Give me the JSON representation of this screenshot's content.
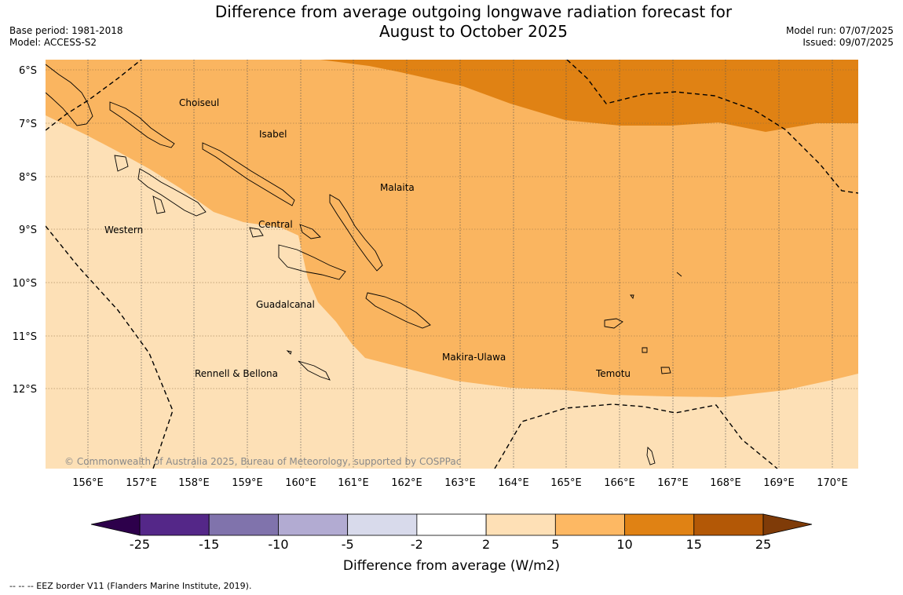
{
  "header": {
    "title_line1": "Difference from average outgoing longwave radiation forecast for",
    "title_line2": "August to October 2025",
    "base_period": "Base period: 1981-2018",
    "model": "Model: ACCESS-S2",
    "model_run": "Model run: 07/07/2025",
    "issued": "Issued: 09/07/2025"
  },
  "map": {
    "lon_labels": [
      "156°E",
      "157°E",
      "158°E",
      "159°E",
      "160°E",
      "161°E",
      "162°E",
      "163°E",
      "164°E",
      "165°E",
      "166°E",
      "167°E",
      "168°E",
      "169°E",
      "170°E"
    ],
    "lat_labels": [
      "6°S",
      "7°S",
      "8°S",
      "9°S",
      "10°S",
      "11°S",
      "12°S"
    ],
    "regions": [
      {
        "name": "Choiseul",
        "key": "choiseul"
      },
      {
        "name": "Isabel",
        "key": "isabel"
      },
      {
        "name": "Malaita",
        "key": "malaita"
      },
      {
        "name": "Western",
        "key": "western"
      },
      {
        "name": "Central",
        "key": "central"
      },
      {
        "name": "Guadalcanal",
        "key": "guadalcanal"
      },
      {
        "name": "Makira-Ulawa",
        "key": "makira"
      },
      {
        "name": "Rennell & Bellona",
        "key": "rennell"
      },
      {
        "name": "Temotu",
        "key": "temotu"
      }
    ],
    "copyright": "© Commonwealth of Australia 2025, Bureau of Meteorology, supported by COSPPac",
    "colors": {
      "light": "#fde0b6",
      "mid": "#fab560",
      "dark": "#e08214",
      "ocean_grid": "#555555"
    }
  },
  "colorbar": {
    "title": "Difference from average (W/m2)",
    "tick_labels": [
      "-25",
      "-15",
      "-10",
      "-5",
      "-2",
      "2",
      "5",
      "10",
      "15",
      "25"
    ],
    "bins": [
      {
        "range": "-25 to -15",
        "color": "#542788"
      },
      {
        "range": "-15 to -10",
        "color": "#8073ac"
      },
      {
        "range": "-10 to -5",
        "color": "#b2abd2"
      },
      {
        "range": "-5 to -2",
        "color": "#d8daeb"
      },
      {
        "range": "-2 to 2",
        "color": "#ffffff"
      },
      {
        "range": "2 to 5",
        "color": "#fee0b6"
      },
      {
        "range": "5 to 10",
        "color": "#fdb863"
      },
      {
        "range": "10 to 15",
        "color": "#e08214"
      },
      {
        "range": "15 to 25",
        "color": "#b35806"
      }
    ],
    "under_color": "#2d004b",
    "over_color": "#7f3b08"
  },
  "footnote": "--  --  -- EEZ border V11 (Flanders Marine Institute, 2019)."
}
